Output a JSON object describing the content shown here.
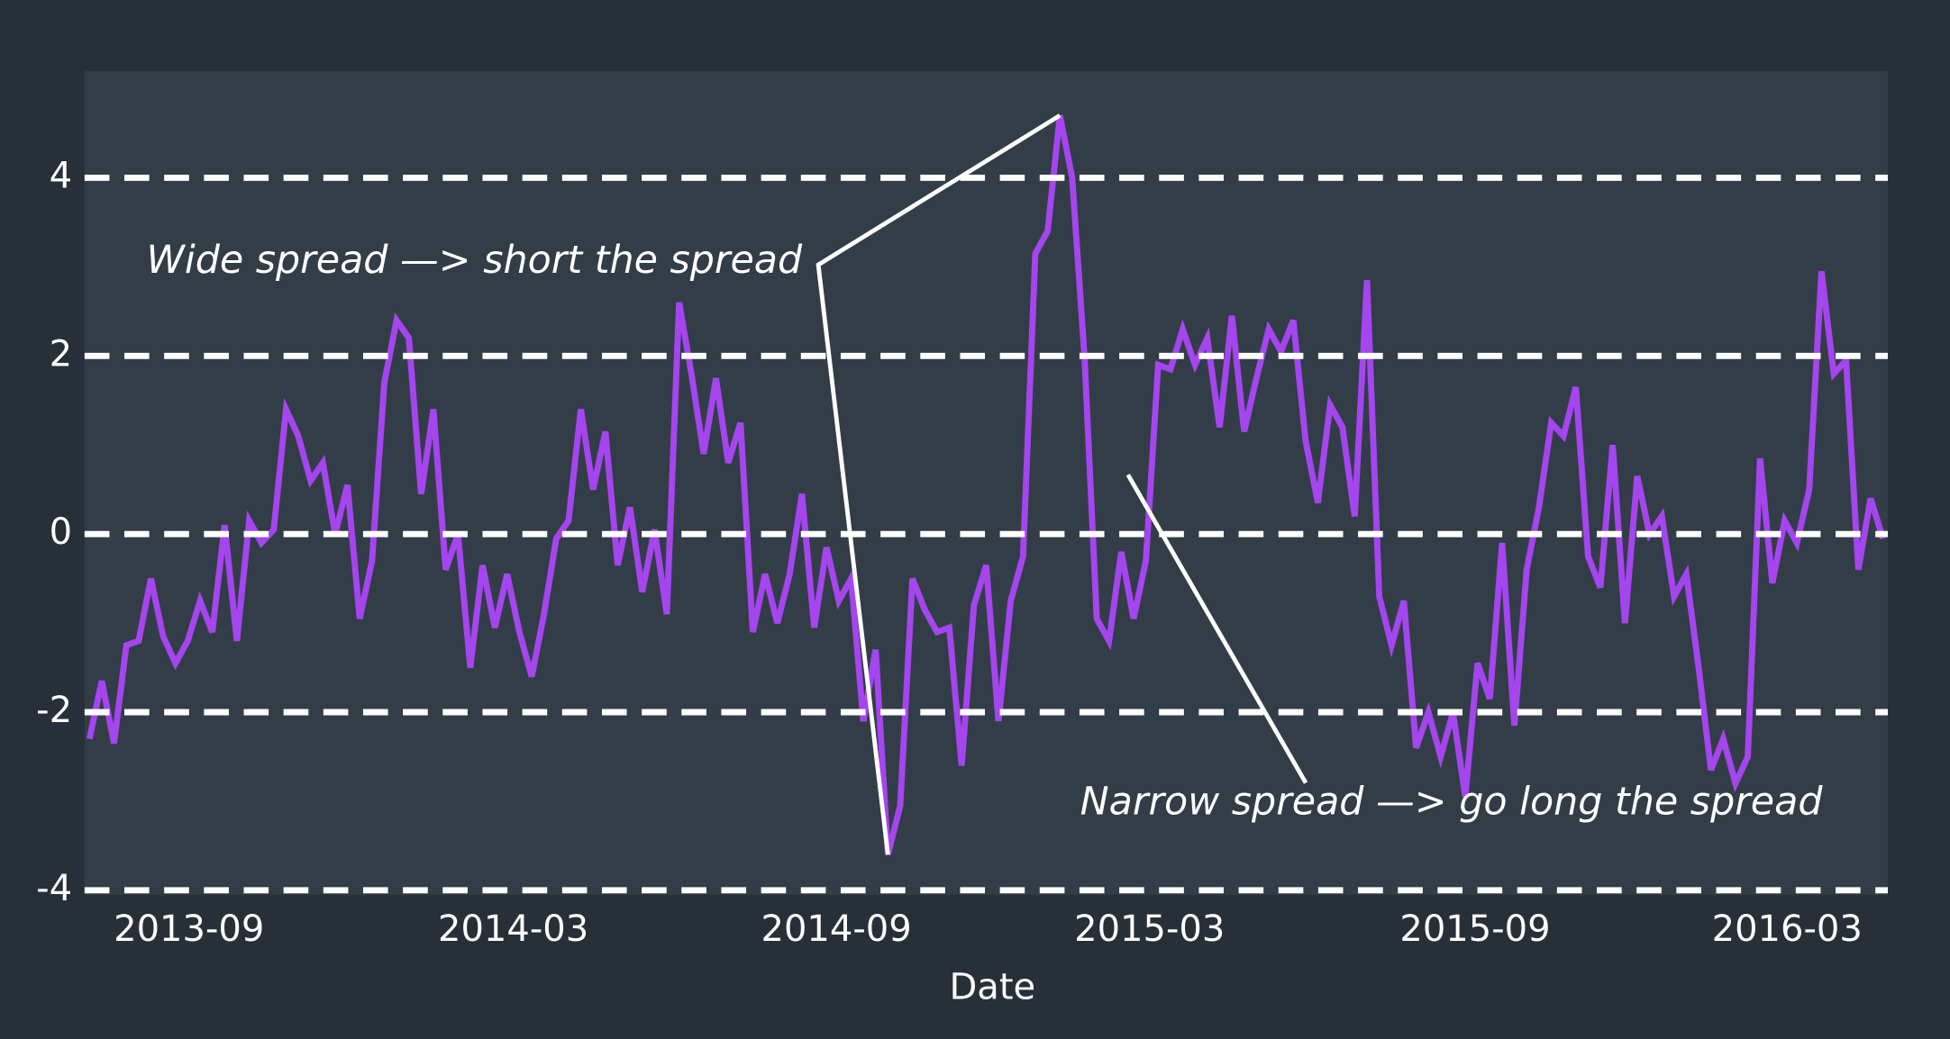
{
  "chart_data": {
    "type": "line",
    "x_label": "Date",
    "color": "#a445ee",
    "grid": true,
    "values": [
      -2.3,
      -1.65,
      -2.35,
      -1.25,
      -1.2,
      -0.5,
      -1.15,
      -1.45,
      -1.2,
      -0.75,
      -1.1,
      0.1,
      -1.2,
      0.15,
      -0.1,
      0.05,
      1.4,
      1.1,
      0.6,
      0.8,
      0,
      0.55,
      -0.95,
      -0.3,
      1.7,
      2.4,
      2.2,
      0.45,
      1.4,
      -0.4,
      0,
      -1.5,
      -0.35,
      -1.05,
      -0.45,
      -1.1,
      -1.6,
      -0.9,
      -0.05,
      0.15,
      1.4,
      0.5,
      1.15,
      -0.35,
      0.3,
      -0.65,
      0.05,
      -0.9,
      2.6,
      1.8,
      0.9,
      1.75,
      0.8,
      1.25,
      -1.1,
      -0.45,
      -1.0,
      -0.45,
      0.45,
      -1.05,
      -0.15,
      -0.75,
      -0.5,
      -2.1,
      -1.3,
      -3.6,
      -3.05,
      -0.5,
      -0.85,
      -1.1,
      -1.05,
      -2.6,
      -0.8,
      -0.35,
      -2.1,
      -0.75,
      -0.25,
      3.15,
      3.4,
      4.7,
      4.0,
      2.0,
      -0.95,
      -1.2,
      -0.2,
      -0.95,
      -0.3,
      1.9,
      1.85,
      2.3,
      1.9,
      2.2,
      1.2,
      2.45,
      1.15,
      1.75,
      2.3,
      2.05,
      2.4,
      1.05,
      0.35,
      1.45,
      1.2,
      0.2,
      2.85,
      -0.7,
      -1.25,
      -0.75,
      -2.4,
      -2.0,
      -2.5,
      -2.0,
      -2.95,
      -1.45,
      -1.85,
      -0.1,
      -2.15,
      -0.4,
      0.3,
      1.25,
      1.1,
      1.65,
      -0.25,
      -0.6,
      1.0,
      -1.0,
      0.65,
      0,
      0.2,
      -0.7,
      -0.45,
      -1.5,
      -2.65,
      -2.3,
      -2.8,
      -2.5,
      0.85,
      -0.55,
      0.15,
      -0.1,
      0.5,
      2.95,
      1.8,
      1.95,
      -0.4,
      0.4,
      -0.05
    ],
    "xlim": [
      -0.4,
      146.4
    ],
    "xticks": [
      {
        "value": 8.1,
        "label": "2013-09"
      },
      {
        "value": 34.5,
        "label": "2014-03"
      },
      {
        "value": 60.8,
        "label": "2014-09"
      },
      {
        "value": 86.3,
        "label": "2015-03"
      },
      {
        "value": 112.8,
        "label": "2015-09"
      },
      {
        "value": 138.2,
        "label": "2016-03"
      }
    ],
    "ylim": [
      -4.05,
      5.2
    ],
    "yticks": [
      -4,
      -2,
      0,
      2,
      4
    ],
    "annotations": [
      {
        "text": "Wide spread —> short the spread"
      },
      {
        "text": "Narrow spread —> go long the spread"
      }
    ]
  }
}
